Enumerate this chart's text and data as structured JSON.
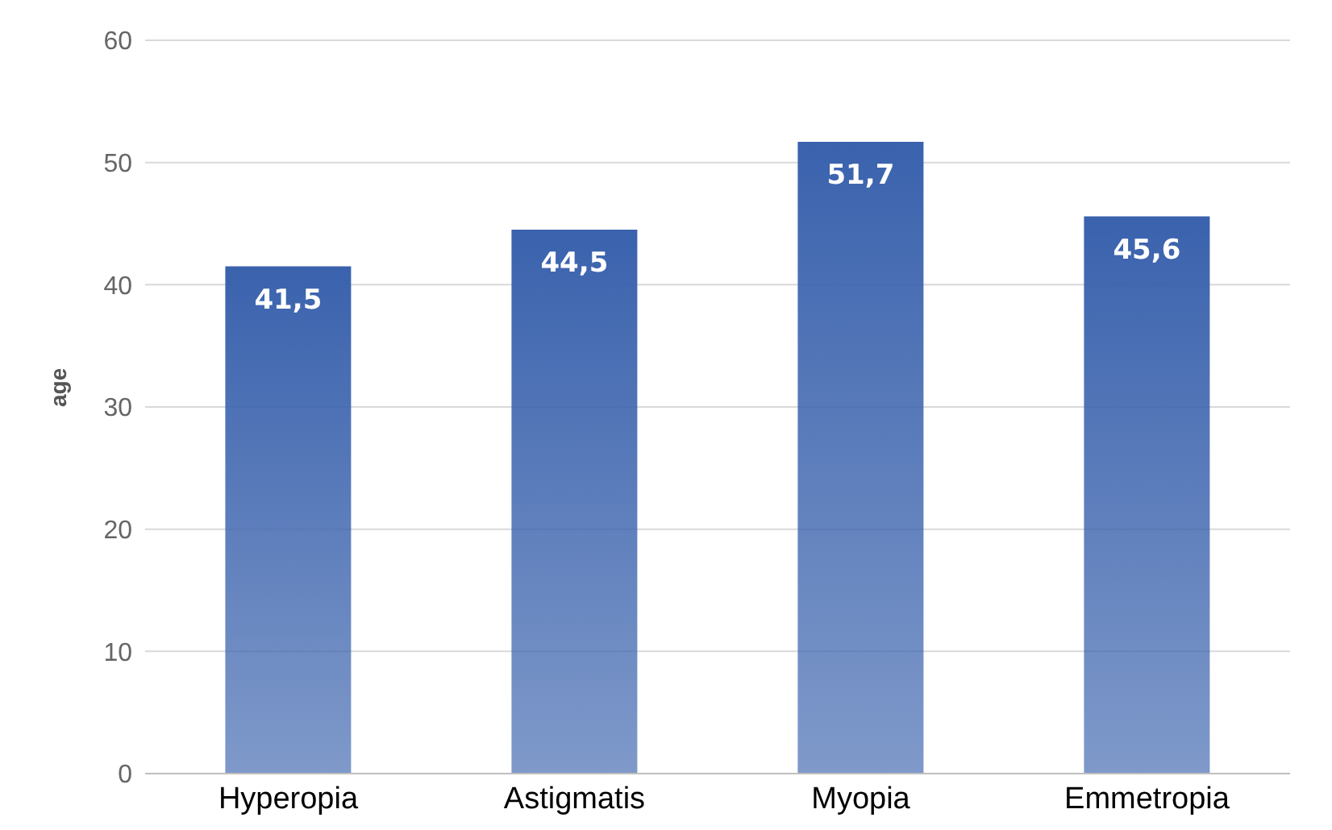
{
  "chart_data": {
    "type": "bar",
    "ylabel": "age",
    "categories": [
      "Hyperopia",
      "Astigmatis",
      "Myopia",
      "Emmetropia"
    ],
    "values": [
      41.5,
      44.5,
      51.7,
      45.6
    ],
    "value_labels": [
      "41,5",
      "44,5",
      "51,7",
      "45,6"
    ],
    "color": "#3a62ad",
    "ylim": [
      0,
      60
    ],
    "yticks": [
      0,
      10,
      20,
      30,
      40,
      50,
      60
    ],
    "grid": "y"
  }
}
